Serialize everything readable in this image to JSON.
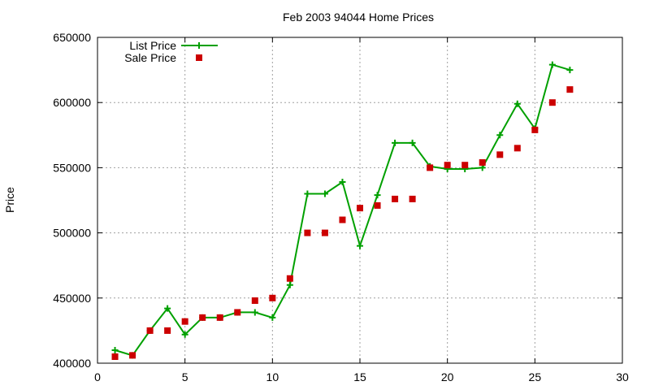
{
  "chart_data": {
    "type": "line",
    "title": "Feb 2003 94044 Home Prices",
    "xlabel": "",
    "ylabel": "Price",
    "xlim": [
      0,
      30
    ],
    "ylim": [
      400000,
      650000
    ],
    "x_ticks": [
      0,
      5,
      10,
      15,
      20,
      25,
      30
    ],
    "y_ticks": [
      400000,
      450000,
      500000,
      550000,
      600000,
      650000
    ],
    "grid": true,
    "legend_position": "top-left",
    "series": [
      {
        "name": "List Price",
        "style": "lines-points",
        "marker": "plus",
        "color": "#00a000",
        "x": [
          1,
          2,
          3,
          4,
          5,
          6,
          7,
          8,
          9,
          10,
          11,
          12,
          13,
          14,
          15,
          16,
          17,
          18,
          19,
          20,
          21,
          22,
          23,
          24,
          25,
          26,
          27
        ],
        "y": [
          410000,
          406000,
          425000,
          442000,
          422000,
          435000,
          435000,
          439000,
          439000,
          435000,
          460000,
          530000,
          530000,
          539000,
          490000,
          529000,
          569000,
          569000,
          551000,
          549000,
          549000,
          550000,
          575000,
          599000,
          580000,
          629000,
          625000
        ]
      },
      {
        "name": "Sale Price",
        "style": "points",
        "marker": "square",
        "color": "#cc0000",
        "x": [
          1,
          2,
          3,
          4,
          5,
          6,
          7,
          8,
          9,
          10,
          11,
          12,
          13,
          14,
          15,
          16,
          17,
          18,
          19,
          20,
          21,
          22,
          23,
          24,
          25,
          26,
          27
        ],
        "y": [
          405000,
          406000,
          425000,
          425000,
          432000,
          435000,
          435000,
          439000,
          448000,
          450000,
          465000,
          500000,
          500000,
          510000,
          519000,
          521000,
          526000,
          526000,
          550000,
          552000,
          552000,
          554000,
          560000,
          565000,
          579000,
          600000,
          610000
        ]
      }
    ]
  }
}
